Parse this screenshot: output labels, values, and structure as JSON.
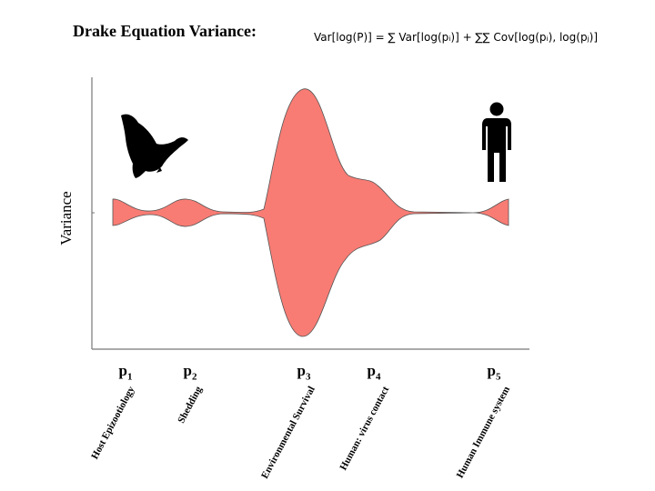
{
  "title": "Drake Equation Variance:",
  "formula": "Var[log(P)] = ∑ Var[log(pᵢ)] + ∑∑ Cov[log(pᵢ), log(pⱼ)]",
  "y_axis_label": "Variance",
  "colors": {
    "fill": "#f87c74",
    "stroke": "#555555",
    "axis": "#777777"
  },
  "icons": {
    "left": "bat-icon",
    "right": "person-icon"
  },
  "chart_data": {
    "type": "area",
    "ylabel": "Variance",
    "categories": [
      "Host Epizootiology",
      "Shedding",
      "Environmental Survival",
      "Human: virus contact",
      "Human Immune system"
    ],
    "series": [
      {
        "values": [
          1,
          1,
          10,
          4,
          1
        ]
      }
    ]
  },
  "p_labels": [
    {
      "base": "p",
      "sub": "1"
    },
    {
      "base": "p",
      "sub": "2"
    },
    {
      "base": "p",
      "sub": "3"
    },
    {
      "base": "p",
      "sub": "4"
    },
    {
      "base": "p",
      "sub": "5"
    }
  ]
}
